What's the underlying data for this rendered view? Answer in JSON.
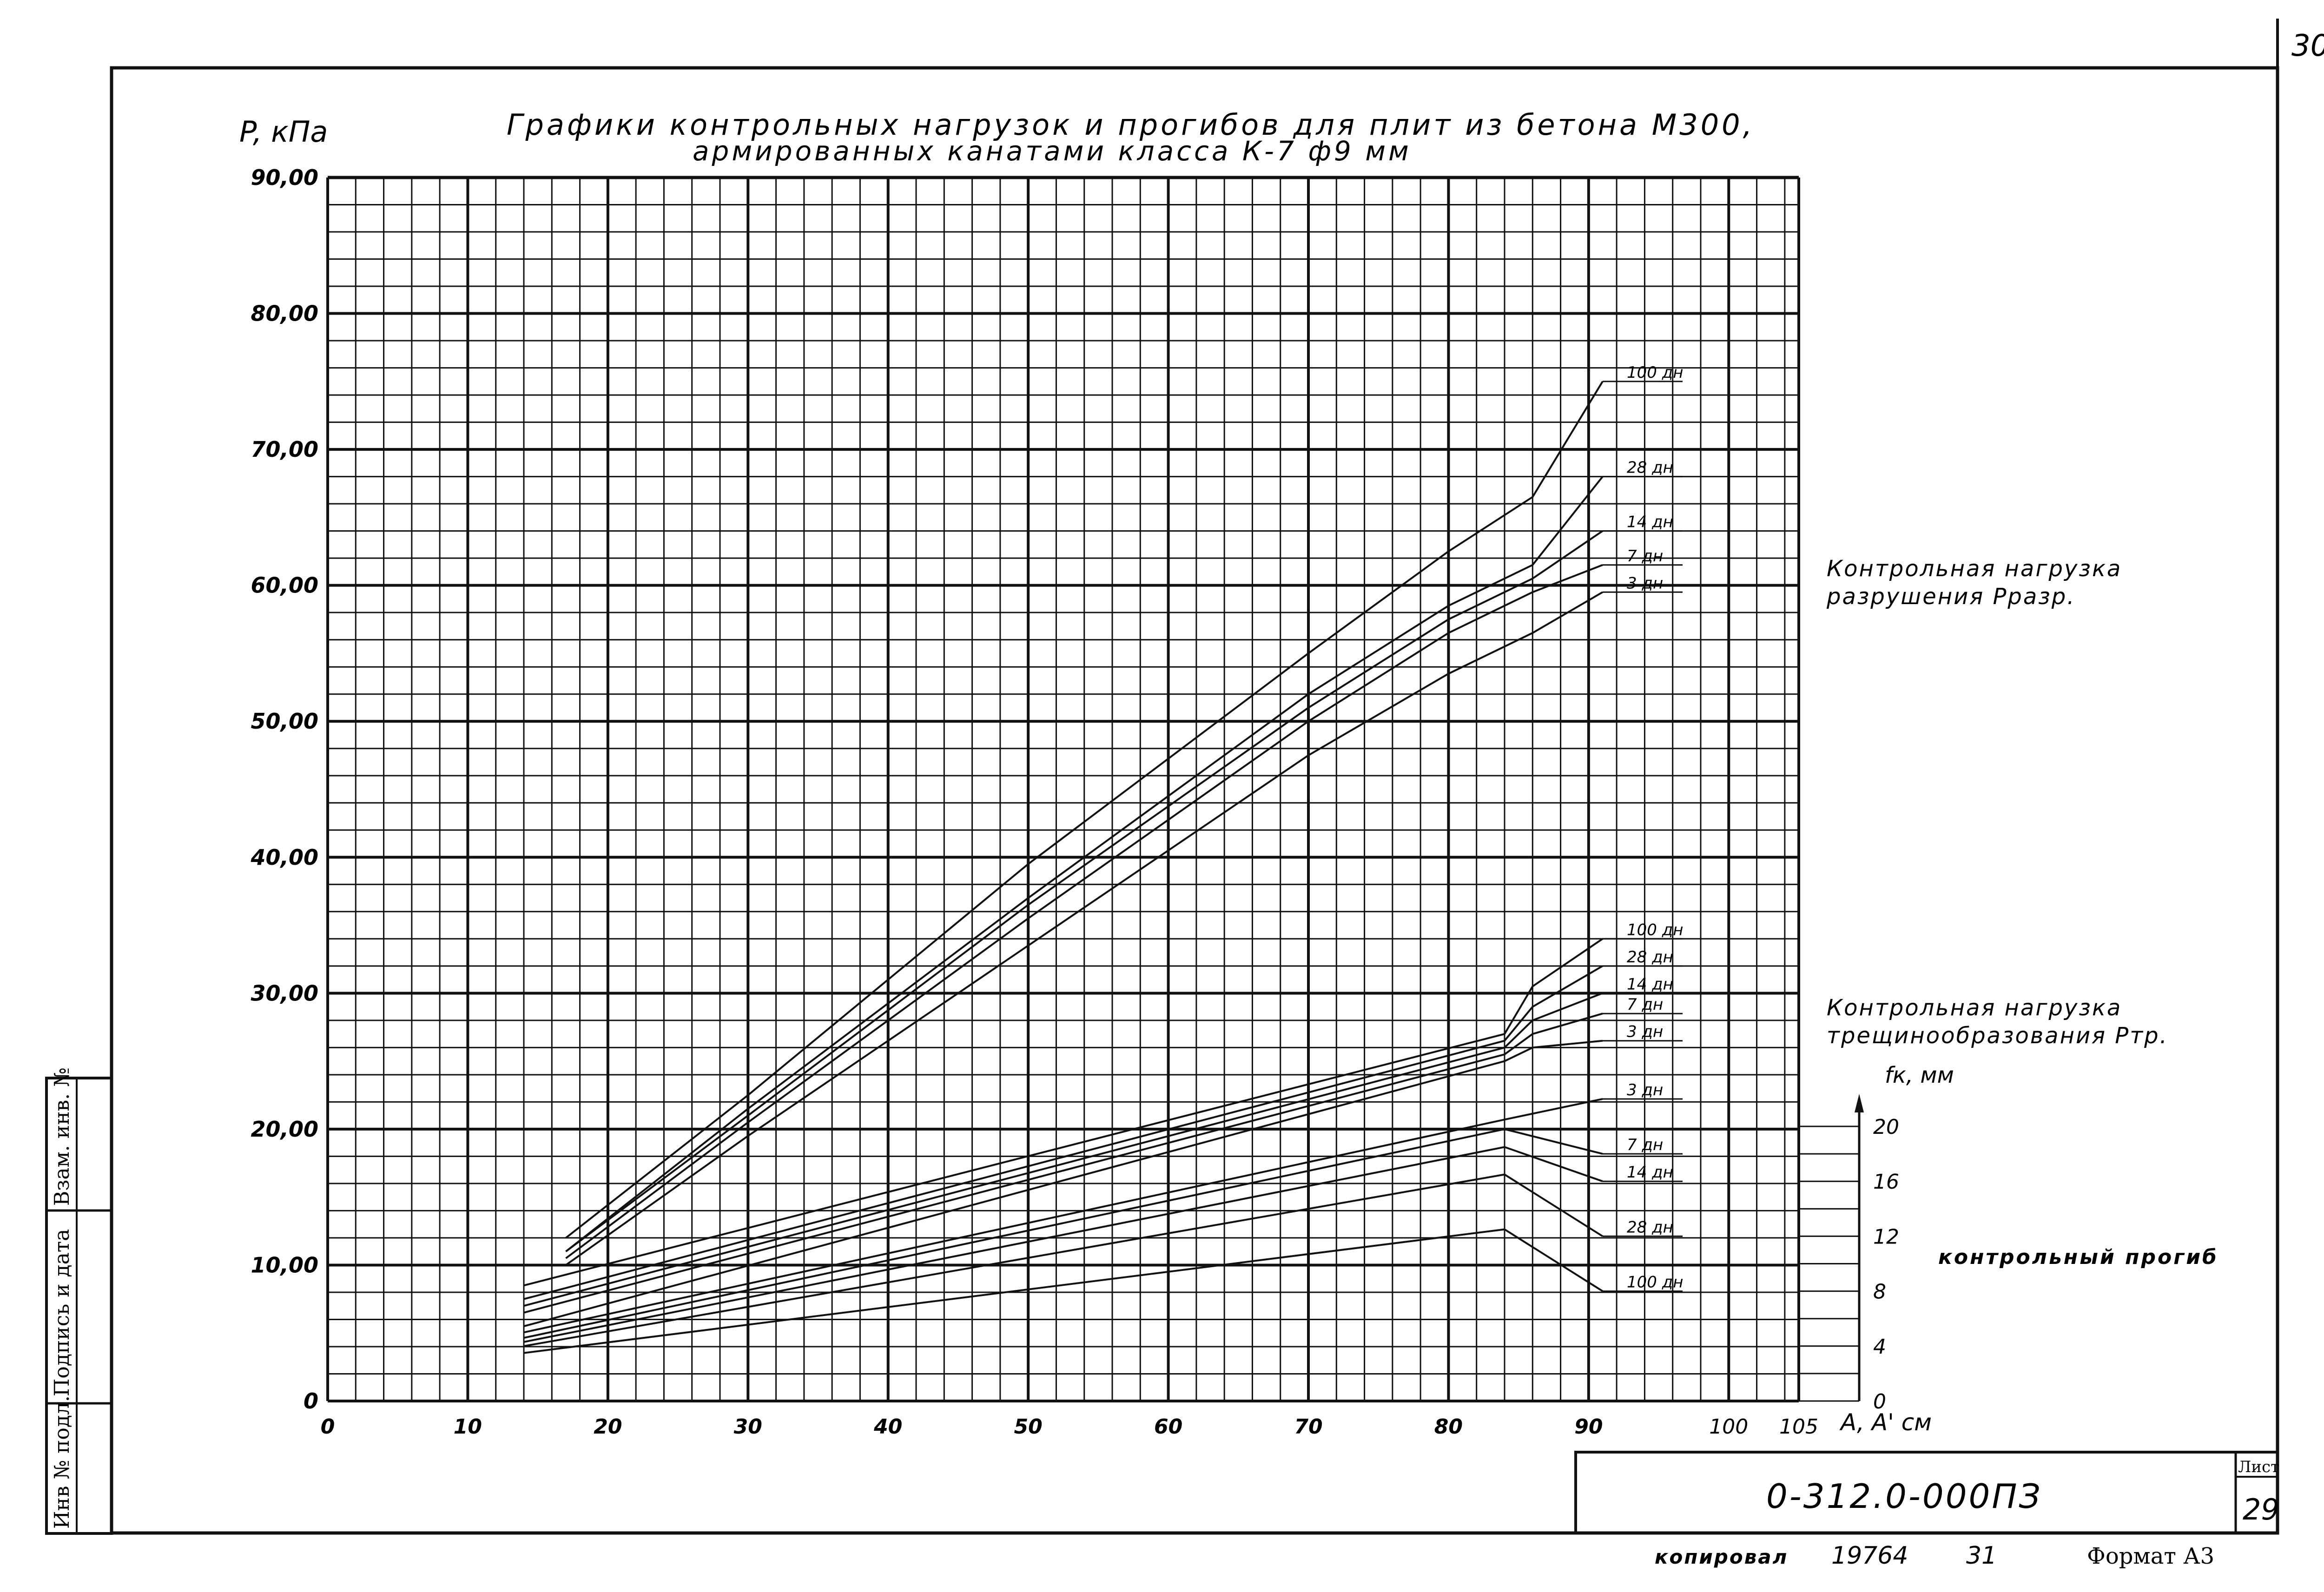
{
  "page": {
    "sheet_number": "30",
    "title_line1": "Графики контрольных нагрузок и прогибов для плит из бетона М300,",
    "title_line2": "армированных канатами класса К-7 ф9 мм",
    "side_stamp": {
      "col1": "Инв № подл.",
      "col2": "Подпись и дата",
      "col3": "Взам. инв. №"
    },
    "stamp": {
      "code": "0-312.0-000ПЗ",
      "sheet_label": "Лист",
      "sheet_value": "29"
    },
    "footer": {
      "copier": "копировал",
      "order": "19764",
      "num": "31",
      "format": "Формат А3"
    },
    "labels": {
      "rupture_line1": "Контрольная нагрузка",
      "rupture_line2": "разрушения Рразр.",
      "crack_line1": "Контрольная нагрузка",
      "crack_line2": "трещинообразования Ртр.",
      "deflection": "контрольный прогиб",
      "fk_axis": "fк, мм"
    }
  },
  "chart_data": {
    "type": "line",
    "title": "Графики контрольных нагрузок и прогибов для плит из бетона М300, армированных канатами класса К-7 ф9 мм",
    "ylabel": "P, кПа",
    "xlabel": "A, A' см",
    "xlim": [
      0,
      105
    ],
    "ylim": [
      0,
      90
    ],
    "x_ticks": [
      "0",
      "10",
      "20",
      "30",
      "40",
      "50",
      "60",
      "70",
      "80",
      "90",
      "100",
      "105"
    ],
    "y_ticks": [
      "0",
      "10,00",
      "20,00",
      "30,00",
      "40,00",
      "50,00",
      "60,00",
      "70,00",
      "80,00",
      "90,00"
    ],
    "right_axis": {
      "label": "fк, мм",
      "ticks": [
        "0",
        "4",
        "8",
        "12",
        "16",
        "20"
      ],
      "lim": [
        0,
        20
      ]
    },
    "groups": [
      {
        "name": "Контрольная нагрузка разрушения Рразр.",
        "series": [
          {
            "name": "100 дн",
            "x": [
              17,
              30,
              50,
              70,
              80,
              86,
              91
            ],
            "y": [
              12.0,
              22.5,
              39.5,
              55.0,
              62.5,
              66.5,
              75.0
            ]
          },
          {
            "name": "28 дн",
            "x": [
              17,
              30,
              50,
              70,
              80,
              86,
              91
            ],
            "y": [
              11.0,
              21.5,
              37.0,
              52.0,
              58.5,
              61.5,
              68.0
            ]
          },
          {
            "name": "14 дн",
            "x": [
              17,
              30,
              50,
              70,
              80,
              86,
              91
            ],
            "y": [
              11.0,
              21.0,
              36.5,
              51.0,
              57.5,
              60.5,
              64.0
            ]
          },
          {
            "name": "7 дн",
            "x": [
              17,
              30,
              50,
              70,
              80,
              86,
              91
            ],
            "y": [
              10.5,
              20.5,
              35.5,
              50.0,
              56.5,
              59.5,
              61.5
            ]
          },
          {
            "name": "3 дн",
            "x": [
              17,
              30,
              50,
              70,
              80,
              86,
              91
            ],
            "y": [
              10.0,
              19.5,
              33.5,
              47.5,
              53.5,
              56.5,
              59.5
            ]
          }
        ]
      },
      {
        "name": "Контрольная нагрузка трещинообразования Ртр.",
        "series": [
          {
            "name": "100 дн",
            "x": [
              14,
              84,
              86,
              91
            ],
            "y": [
              8.5,
              27.0,
              30.5,
              34.0
            ]
          },
          {
            "name": "28 дн",
            "x": [
              14,
              84,
              86,
              91
            ],
            "y": [
              7.5,
              26.5,
              29.0,
              32.0
            ]
          },
          {
            "name": "14 дн",
            "x": [
              14,
              84,
              86,
              91
            ],
            "y": [
              7.0,
              26.0,
              28.0,
              30.0
            ]
          },
          {
            "name": "7 дн",
            "x": [
              14,
              84,
              86,
              91
            ],
            "y": [
              6.5,
              25.5,
              27.0,
              28.5
            ]
          },
          {
            "name": "3 дн",
            "x": [
              14,
              84,
              86,
              91
            ],
            "y": [
              5.5,
              25.0,
              26.0,
              26.5
            ]
          }
        ]
      },
      {
        "name": "контрольный прогиб",
        "units": "fк, мм",
        "series": [
          {
            "name": "3 дн",
            "x": [
              14,
              84,
              91
            ],
            "y": [
              5.0,
              20.5,
              22.0
            ]
          },
          {
            "name": "7 дн",
            "x": [
              14,
              84,
              91
            ],
            "y": [
              4.6,
              19.8,
              18.0
            ]
          },
          {
            "name": "14 дн",
            "x": [
              14,
              84,
              91
            ],
            "y": [
              4.3,
              18.5,
              16.0
            ]
          },
          {
            "name": "28 дн",
            "x": [
              14,
              84,
              91
            ],
            "y": [
              4.0,
              16.5,
              12.0
            ]
          },
          {
            "name": "100 дн",
            "x": [
              14,
              84,
              91
            ],
            "y": [
              3.5,
              12.5,
              8.0
            ]
          }
        ]
      }
    ],
    "grid": true
  }
}
